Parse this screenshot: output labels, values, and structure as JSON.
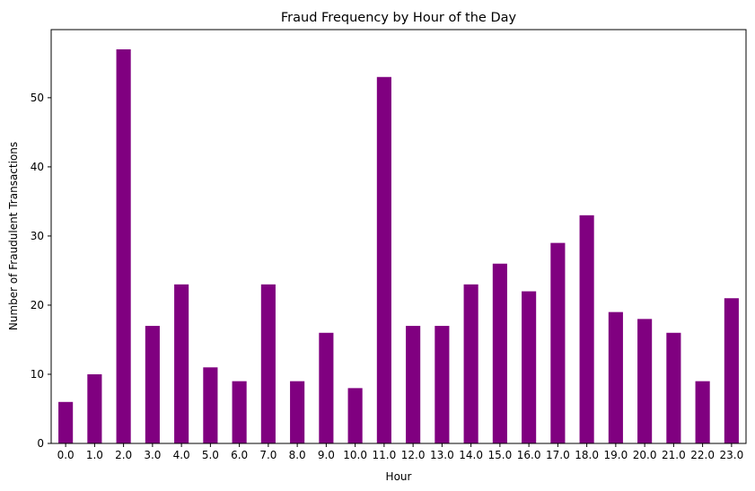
{
  "chart_data": {
    "type": "bar",
    "title": "Fraud Frequency by Hour of the Day",
    "xlabel": "Hour",
    "ylabel": "Number of Fraudulent Transactions",
    "categories": [
      "0.0",
      "1.0",
      "2.0",
      "3.0",
      "4.0",
      "5.0",
      "6.0",
      "7.0",
      "8.0",
      "9.0",
      "10.0",
      "11.0",
      "12.0",
      "13.0",
      "14.0",
      "15.0",
      "16.0",
      "17.0",
      "18.0",
      "19.0",
      "20.0",
      "21.0",
      "22.0",
      "23.0"
    ],
    "values": [
      6,
      10,
      57,
      17,
      23,
      11,
      9,
      23,
      9,
      16,
      8,
      53,
      17,
      17,
      23,
      26,
      22,
      29,
      33,
      19,
      18,
      16,
      9,
      21
    ],
    "ylim": [
      0,
      59.85
    ],
    "yticks": [
      0,
      10,
      20,
      30,
      40,
      50
    ],
    "bar_color": "#800080",
    "grid": false,
    "legend": "none"
  }
}
